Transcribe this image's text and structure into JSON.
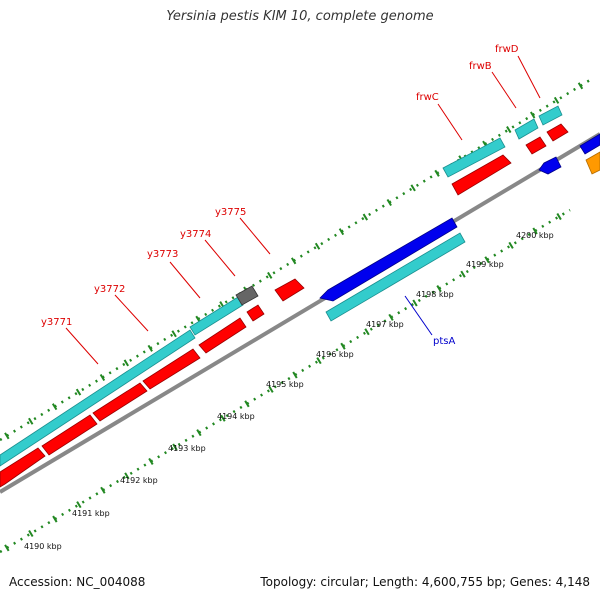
{
  "title": "Yersinia pestis KIM 10, complete genome",
  "footer": {
    "accession": "Accession: NC_004088",
    "topology": "Topology: circular; Length: 4,600,755 bp; Genes: 4,148"
  },
  "colors": {
    "forward_cds": "#ff0000",
    "forward_gene": "#33cccc",
    "reverse_cds": "#0000ee",
    "reverse_gene": "#33cccc",
    "other_gene": "#666666",
    "other_strand": "#ff9900",
    "backbone": "#888888",
    "tick": "#228822",
    "label_forward": "#dd0000",
    "label_reverse": "#0000cc"
  },
  "tick_labels": [
    "4190 kbp",
    "4191 kbp",
    "4192 kbp",
    "4193 kbp",
    "4194 kbp",
    "4195 kbp",
    "4196 kbp",
    "4197 kbp",
    "4198 kbp",
    "4199 kbp",
    "4200 kbp"
  ],
  "gene_labels_forward": [
    "y3771",
    "y3772",
    "y3773",
    "y3774",
    "y3775",
    "frwC",
    "frwB",
    "frwD"
  ],
  "gene_labels_reverse": [
    "ptsA"
  ]
}
